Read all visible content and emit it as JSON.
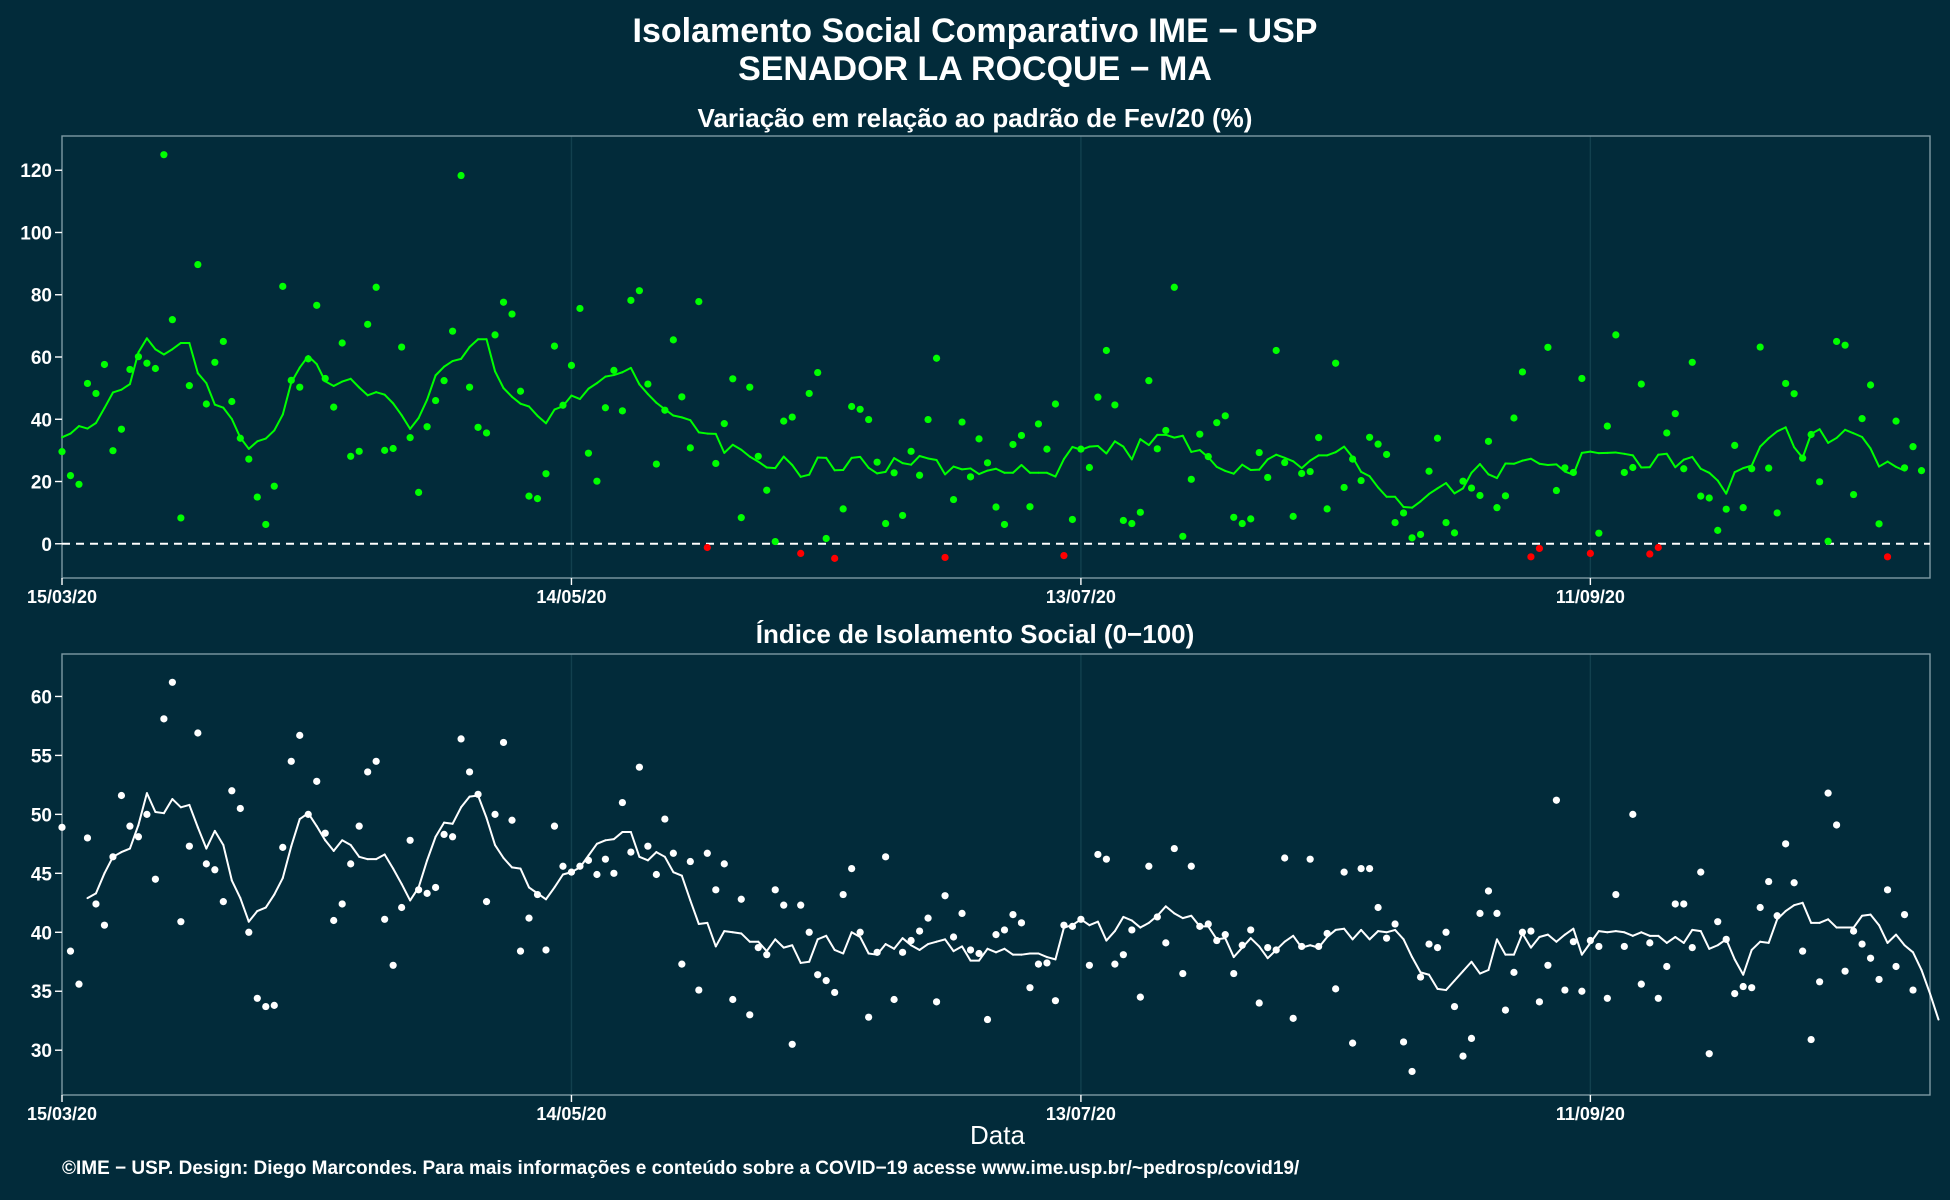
{
  "title": [
    "Isolamento Social Comparativo IME − USP",
    "SENADOR LA ROCQUE − MA"
  ],
  "xlabel": "Data",
  "footer": "©IME − USP. Design: Diego Marcondes. Para mais informações e conteúdo sobre a COVID−19 acesse www.ime.usp.br/~pedrosp/covid19/",
  "colors": {
    "background": "#022b3a",
    "panel_border": "#7d9aa3",
    "grid": "#12404e",
    "positive": "#00ff00",
    "negative": "#ff0000",
    "index_series": "#ffffff",
    "text": "#ffffff"
  },
  "chart_data": [
    {
      "type": "scatter",
      "title": "Variação em relação ao padrão de Fev/20 (%)",
      "x_start": "15/03/20",
      "x_ticks": [
        "15/03/20",
        "14/05/20",
        "13/07/20",
        "11/09/20"
      ],
      "x_tick_days": [
        0,
        60,
        120,
        180
      ],
      "xlim": [
        0,
        220
      ],
      "ylim": [
        -11,
        131
      ],
      "y_ticks": [
        0,
        20,
        40,
        60,
        80,
        100,
        120
      ],
      "reference_line": 0,
      "series": [
        {
          "kind": "points",
          "values": [
            29.6,
            21.9,
            19.1,
            51.5,
            48.3,
            57.6,
            29.9,
            36.8,
            56,
            60.1,
            58,
            56.3,
            125,
            72,
            8.3,
            50.8,
            89.7,
            44.9,
            58.3,
            65,
            45.7,
            33.9,
            27.2,
            15,
            6.2,
            18.5,
            82.7,
            52.5,
            50.3,
            59.4,
            76.6,
            53.1,
            43.9,
            64.5,
            28.1,
            29.7,
            70.5,
            82.4,
            30,
            30.6,
            63.2,
            34.1,
            16.5,
            37.6,
            46,
            52.4,
            68.3,
            118.3,
            50.3,
            37.4,
            35.6,
            67.1,
            77.6,
            73.8,
            49,
            15.3,
            14.5,
            22.5,
            63.5,
            44.5,
            57.3,
            75.6,
            29.1,
            20.1,
            43.7,
            55.7,
            42.7,
            78.2,
            81.3,
            51.3,
            25.6,
            42.9,
            65.5,
            47.2,
            30.8,
            77.8,
            -1.2,
            25.8,
            38.6,
            53,
            8.4,
            50.3,
            28.1,
            17.2,
            0.7,
            39.4,
            40.7,
            -3.1,
            48.3,
            55,
            1.7,
            -4.7,
            11.2,
            44.1,
            43.2,
            39.9,
            26.2,
            6.5,
            22.8,
            9.1,
            29.7,
            22,
            39.9,
            59.6,
            -4.4,
            14.2,
            39.1,
            21.5,
            33.7,
            26,
            11.8,
            6.2,
            31.9,
            34.8,
            11.9,
            38.5,
            30.4,
            44.9,
            -3.8,
            7.8,
            30.4,
            24.5,
            47.1,
            62.1,
            44.6,
            7.5,
            6.5,
            10.1,
            52.4,
            30.5,
            36.4,
            82.4,
            2.4,
            20.7,
            35.2,
            28,
            38.9,
            41.1,
            8.5,
            6.5,
            8,
            29.3,
            21.3,
            62.1,
            26.1,
            8.8,
            22.6,
            23.2,
            34.1,
            11.2,
            58,
            18.1,
            27.2,
            20.3,
            34.2,
            32,
            28.7,
            6.8,
            9.9,
            1.9,
            3,
            23.3,
            33.9,
            6.8,
            3.5,
            20.1,
            17.9,
            15.5,
            32.9,
            11.6,
            15.4,
            40.4,
            55.2,
            -4.2,
            -1.5,
            63.1,
            17.1,
            24.4,
            22.9,
            53.1,
            -3.1,
            3.4,
            37.8,
            67.1,
            22.9,
            24.5,
            51.3,
            -3.3,
            -1.2,
            35.6,
            41.8,
            24.1,
            58.3,
            15.3,
            14.7,
            4.3,
            11.1,
            31.6,
            11.6,
            24.1,
            63.2,
            24.3,
            9.9,
            51.5,
            48.2,
            27.5,
            35.1,
            19.9,
            0.8,
            65,
            63.8,
            15.8,
            40.2,
            51,
            6.4,
            -4.2,
            39.4,
            24.4,
            31.2,
            23.5
          ]
        },
        {
          "kind": "line",
          "x_offset": 0,
          "values": [
            34.2,
            35.4,
            37.8,
            37,
            38.8,
            43.6,
            48.6,
            49.5,
            51.3,
            61.5,
            66,
            62.5,
            60.8,
            62.5,
            64.5,
            64.5,
            54.8,
            51.6,
            44.7,
            43.7,
            40.1,
            34.1,
            30.5,
            32.9,
            33.8,
            36.4,
            41.5,
            51.8,
            56.6,
            60.3,
            57.7,
            52.2,
            50.7,
            52.1,
            53,
            50.2,
            47.7,
            48.7,
            47.9,
            45.1,
            41.3,
            36.9,
            40.4,
            46.3,
            54.1,
            56.9,
            58.7,
            59.4,
            63.2,
            65.7,
            65.7,
            55.4,
            50,
            47.2,
            45,
            44.1,
            41.1,
            38.7,
            43.1,
            44.2,
            47.6,
            46.5,
            49.8,
            51.6,
            53.7,
            54.2,
            55.1,
            56.5,
            51.2,
            48.1,
            45.3,
            43.2,
            41.2,
            40.6,
            39.7,
            35.8,
            35.4,
            35.3,
            29.2,
            31.8,
            30.2,
            28,
            26.4,
            24.5,
            24.3,
            28,
            25.3,
            21.5,
            22.2,
            27.7,
            27.6,
            23.6,
            23.7,
            27.6,
            27.9,
            24.4,
            22.6,
            23.1,
            27.5,
            25.9,
            25.4,
            28.2,
            27.4,
            26.9,
            22.3,
            24.8,
            23.9,
            24.2,
            22.4,
            23.5,
            24.1,
            22.8,
            22.8,
            25.3,
            22.8,
            22.8,
            22.8,
            21.6,
            27.2,
            31.1,
            30.2,
            31.2,
            31.4,
            29,
            32.9,
            31.2,
            27.1,
            33.6,
            31.7,
            35,
            35,
            34.1,
            34.7,
            29.5,
            30.1,
            27.8,
            24.7,
            23.4,
            22.5,
            25.4,
            23.7,
            23.8,
            27.1,
            28.6,
            27.6,
            26.5,
            24.3,
            26.7,
            28.4,
            28.4,
            29.4,
            31.2,
            27.8,
            23.1,
            21.7,
            18.1,
            15.1,
            15.1,
            11.8,
            11.6,
            13.6,
            16,
            17.8,
            19.5,
            16.2,
            17.8,
            22.8,
            25.6,
            22.3,
            21.1,
            25.8,
            25.7,
            26.7,
            27.3,
            25.7,
            25.3,
            25.5,
            23.2,
            22.2,
            29.2,
            29.6,
            29.1,
            29.2,
            29.3,
            28.9,
            28.4,
            24.5,
            24.6,
            28.6,
            28.9,
            24.6,
            27,
            27.9,
            24.1,
            22.8,
            20.3,
            16.1,
            23,
            24.3,
            25.1,
            31.2,
            33.9,
            36.1,
            37.4,
            31,
            27.6,
            35.3,
            36.8,
            32.4,
            34,
            36.6,
            35.5,
            34.3,
            30.6,
            24.8,
            26.4,
            24.7,
            23.5
          ]
        }
      ]
    },
    {
      "type": "scatter",
      "title": "Índice de Isolamento Social (0−100)",
      "x_start": "15/03/20",
      "x_ticks": [
        "15/03/20",
        "14/05/20",
        "13/07/20",
        "11/09/20"
      ],
      "x_tick_days": [
        0,
        60,
        120,
        180
      ],
      "xlim": [
        0,
        220
      ],
      "ylim": [
        26.2,
        63.6
      ],
      "y_ticks": [
        30,
        35,
        40,
        45,
        50,
        55,
        60
      ],
      "series": [
        {
          "kind": "points",
          "values": [
            48.9,
            38.4,
            35.6,
            48,
            42.4,
            40.6,
            46.4,
            51.6,
            49,
            48.1,
            50,
            44.5,
            58.1,
            61.2,
            40.9,
            47.3,
            56.9,
            45.8,
            45.3,
            42.6,
            52,
            50.5,
            40,
            34.4,
            33.7,
            33.8,
            47.2,
            54.5,
            56.7,
            50,
            52.8,
            48.4,
            41,
            42.4,
            45.8,
            49,
            53.6,
            54.5,
            41.1,
            37.2,
            42.1,
            47.8,
            43.6,
            43.3,
            43.8,
            48.3,
            48.1,
            56.4,
            53.6,
            51.7,
            42.6,
            50,
            56.1,
            49.5,
            38.4,
            41.2,
            43.2,
            38.5,
            49,
            45.6,
            45.1,
            45.6,
            46.1,
            44.9,
            46.2,
            45,
            51,
            46.8,
            54,
            47.3,
            44.9,
            49.6,
            46.7,
            37.3,
            46,
            35.1,
            46.7,
            43.6,
            45.8,
            34.3,
            42.8,
            33,
            38.7,
            38.1,
            43.6,
            42.3,
            30.5,
            42.3,
            40,
            36.4,
            35.9,
            34.9,
            43.2,
            45.4,
            40,
            32.8,
            38.3,
            46.4,
            34.3,
            38.3,
            39.3,
            40.1,
            41.2,
            34.1,
            43.1,
            39.6,
            41.6,
            38.5,
            38.2,
            32.6,
            39.8,
            40.2,
            41.5,
            40.8,
            35.3,
            37.3,
            37.4,
            34.2,
            40.6,
            40.5,
            41.1,
            37.2,
            46.6,
            46.2,
            37.3,
            38.1,
            40.2,
            34.5,
            45.6,
            41.3,
            39.1,
            47.1,
            36.5,
            45.6,
            40.5,
            40.7,
            39.3,
            39.8,
            36.5,
            38.9,
            40.2,
            34,
            38.7,
            38.5,
            46.3,
            32.7,
            38.8,
            46.2,
            38.8,
            39.9,
            35.2,
            45.1,
            30.6,
            45.4,
            45.4,
            42.1,
            39.5,
            40.7,
            30.7,
            28.2,
            36.2,
            39,
            38.7,
            40,
            33.7,
            29.5,
            31,
            41.6,
            43.5,
            41.6,
            33.4,
            36.6,
            40,
            40.1,
            34.1,
            37.2,
            51.2,
            35.1,
            39.2,
            35,
            39.3,
            38.8,
            34.4,
            43.2,
            38.8,
            50,
            35.6,
            39.1,
            34.4,
            37.1,
            42.4,
            42.4,
            38.7,
            45.1,
            29.7,
            40.9,
            39.4,
            34.8,
            35.4,
            35.3,
            42.1,
            44.3,
            41.4,
            47.5,
            44.2,
            38.4,
            30.9,
            35.8,
            51.8,
            49.1,
            36.7,
            40.1,
            39,
            37.8,
            36,
            43.6,
            37.1,
            41.5,
            35.1
          ]
        },
        {
          "kind": "line",
          "x_offset": 3,
          "values": [
            42.9,
            43.3,
            45,
            46.4,
            46.8,
            47.1,
            49.1,
            51.8,
            50.2,
            50.1,
            51.3,
            50.6,
            50.8,
            48.9,
            47.1,
            48.6,
            47.4,
            44.4,
            42.9,
            40.9,
            41.8,
            42.1,
            43.2,
            44.6,
            47.3,
            49.6,
            50.1,
            49,
            47.8,
            46.9,
            47.8,
            47.4,
            46.4,
            46.2,
            46.2,
            46.6,
            45.4,
            44.1,
            42.7,
            43.8,
            46.1,
            48.1,
            49.3,
            49.2,
            50.6,
            51.5,
            51.6,
            49.7,
            47.4,
            46.3,
            45.5,
            45.4,
            43.8,
            43.3,
            42.8,
            43.8,
            44.9,
            45.1,
            45.5,
            46.5,
            47.5,
            47.8,
            47.9,
            48.5,
            48.5,
            46.4,
            46.1,
            46.8,
            46.4,
            45.1,
            44.8,
            42.7,
            40.7,
            40.8,
            38.8,
            40.1,
            40,
            39.9,
            39.2,
            39.2,
            38.4,
            39.4,
            38.7,
            38.9,
            37.4,
            37.5,
            39.4,
            39.7,
            38.5,
            38.2,
            40,
            39.6,
            38.2,
            38.1,
            39,
            38.6,
            39.5,
            38.9,
            38.5,
            39,
            39.2,
            39.4,
            38.4,
            38.8,
            37.6,
            37.6,
            38.6,
            38.3,
            38.6,
            38.1,
            38.1,
            38.2,
            38.2,
            37.9,
            37.7,
            40.4,
            40.6,
            41.1,
            40.6,
            40.9,
            39.3,
            40.1,
            41.3,
            41,
            40.4,
            40.8,
            41.4,
            42.2,
            41.6,
            41.2,
            41.4,
            40.5,
            40.5,
            39.4,
            39.5,
            37.9,
            38.7,
            39.5,
            38.8,
            37.8,
            38.5,
            39.2,
            39.7,
            38.7,
            38.9,
            38.7,
            39.6,
            40.2,
            40.3,
            39.4,
            40.2,
            39.4,
            40.1,
            40,
            40.2,
            39.4,
            37.9,
            36.6,
            36.4,
            35.2,
            35.1,
            35.9,
            36.7,
            37.5,
            36.5,
            36.8,
            39.4,
            38.1,
            38.1,
            39.9,
            38.7,
            39.6,
            39.8,
            39.2,
            39.8,
            40.3,
            38.1,
            39.1,
            40.1,
            40,
            40.1,
            40,
            39.7,
            40,
            39.7,
            39.7,
            39.1,
            39.6,
            39.1,
            40.2,
            40.1,
            38.6,
            38.9,
            39.4,
            37.7,
            36.4,
            38.5,
            39.2,
            39.1,
            41.1,
            41.8,
            42.3,
            42.5,
            40.8,
            40.8,
            41.1,
            40.4,
            40.4,
            40.4,
            41.4,
            41.5,
            40.6,
            39.1,
            39.8,
            38.9,
            38.3,
            36.8,
            34.8,
            32.6
          ]
        }
      ]
    }
  ]
}
